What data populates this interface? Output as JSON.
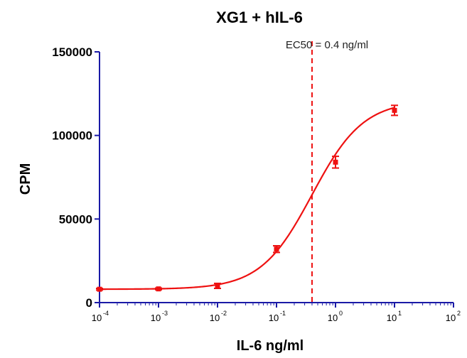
{
  "chart_data": {
    "type": "scatter",
    "title": "XG1 + hIL-6",
    "xlabel": "IL-6 ng/ml",
    "ylabel": "CPM",
    "x_scale": "log10",
    "xlim": [
      0.0001,
      100
    ],
    "ylim": [
      0,
      150000
    ],
    "y_ticks": [
      0,
      50000,
      100000,
      150000
    ],
    "y_tick_labels": [
      "0",
      "50000",
      "100000",
      "150000"
    ],
    "x_ticks": [
      {
        "base": "10",
        "exp": "-4",
        "value": 0.0001
      },
      {
        "base": "10",
        "exp": "-3",
        "value": 0.001
      },
      {
        "base": "10",
        "exp": "-2",
        "value": 0.01
      },
      {
        "base": "10",
        "exp": "-1",
        "value": 0.1
      },
      {
        "base": "10",
        "exp": "0",
        "value": 1
      },
      {
        "base": "10",
        "exp": "1",
        "value": 10
      },
      {
        "base": "10",
        "exp": "2",
        "value": 100
      }
    ],
    "series": [
      {
        "color": "#ee1111",
        "points": [
          {
            "x": 0.0001,
            "y": 8000,
            "err": 500
          },
          {
            "x": 0.001,
            "y": 8200,
            "err": 500
          },
          {
            "x": 0.01,
            "y": 10000,
            "err": 1500
          },
          {
            "x": 0.1,
            "y": 32000,
            "err": 2000
          },
          {
            "x": 1,
            "y": 84000,
            "err": 3500
          },
          {
            "x": 10,
            "y": 115000,
            "err": 3000
          }
        ],
        "fit": {
          "bottom": 8000,
          "top": 121000,
          "ec50": 0.4,
          "hill": 1.0
        }
      }
    ],
    "ec50_line": {
      "x": 0.4,
      "label": "EC50 = 0.4 ng/ml",
      "color": "#ee1111"
    },
    "axis_color": "#1a1aa6",
    "grid": false,
    "legend": "none"
  }
}
